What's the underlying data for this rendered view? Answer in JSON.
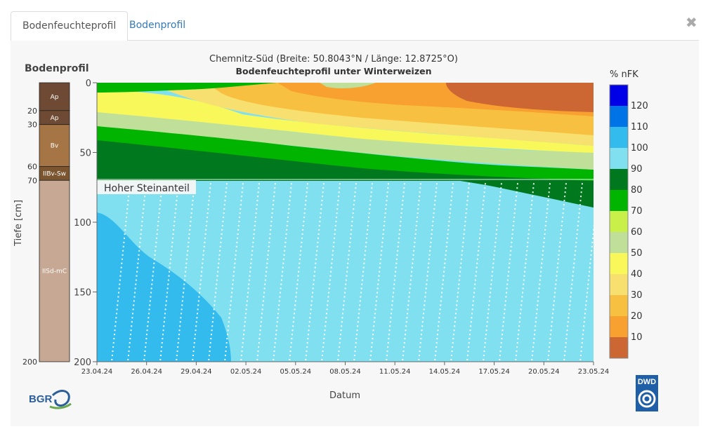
{
  "tabs": [
    {
      "label": "Bodenfeuchteprofil",
      "active": true
    },
    {
      "label": "Bodenprofil",
      "active": false
    }
  ],
  "close_icon": "close-icon",
  "chart_data": {
    "type": "heatmap",
    "title": "Chemnitz-Süd (Breite: 50.8043°N / Länge: 12.8725°O)",
    "subtitle": "Bodenfeuchteprofil unter Winterweizen",
    "xlabel": "Datum",
    "ylabel": "Tiefe [cm]",
    "x_ticks": [
      "23.04.24",
      "26.04.24",
      "29.04.24",
      "02.05.24",
      "05.05.24",
      "08.05.24",
      "11.05.24",
      "14.05.24",
      "17.05.24",
      "20.05.24",
      "23.05.24"
    ],
    "y_ticks": [
      0,
      50,
      100,
      150,
      200
    ],
    "ylim": [
      200,
      0
    ],
    "annotation": "Hoher Steinanteil",
    "stone_boundary_depth": [
      70,
      90
    ],
    "colorbar": {
      "title": "% nFK",
      "ticks": [
        120,
        110,
        100,
        90,
        80,
        70,
        60,
        50,
        40,
        30,
        20,
        10
      ],
      "colors": [
        "#0000e6",
        "#0073e6",
        "#33bbee",
        "#80e0f0",
        "#00781e",
        "#00b400",
        "#c8f048",
        "#c0e09a",
        "#f8f85a",
        "#f8e070",
        "#f8c040",
        "#f8a030",
        "#cc6633"
      ]
    },
    "moisture_isolines": [
      {
        "class": "60-70",
        "color": "#c0e09a",
        "depth": [
          5,
          6,
          8,
          10,
          10,
          10,
          10,
          10,
          10,
          10,
          10
        ]
      },
      {
        "class": "50-60",
        "color": "#f8f85a",
        "depth": [
          22,
          20,
          14,
          5,
          3,
          3,
          3,
          3,
          3,
          3,
          3
        ]
      }
    ]
  },
  "profile": {
    "title": "Bodenprofil",
    "ylabel": "Tiefe [cm]",
    "layers": [
      {
        "label": "Ap",
        "from": 0,
        "to": 20,
        "color": "#6e4a34"
      },
      {
        "label": "Ap",
        "from": 20,
        "to": 30,
        "color": "#6e4a34"
      },
      {
        "label": "Bv",
        "from": 30,
        "to": 60,
        "color": "#a57545"
      },
      {
        "label": "IIBv-Sw",
        "from": 60,
        "to": 70,
        "color": "#7a5530"
      },
      {
        "label": "IISd-mC",
        "from": 70,
        "to": 200,
        "color": "#c7a894"
      }
    ],
    "depth_labels": [
      "20",
      "30",
      "60",
      "70",
      "200"
    ]
  },
  "logos": {
    "left": "BGR",
    "right": "DWD"
  }
}
